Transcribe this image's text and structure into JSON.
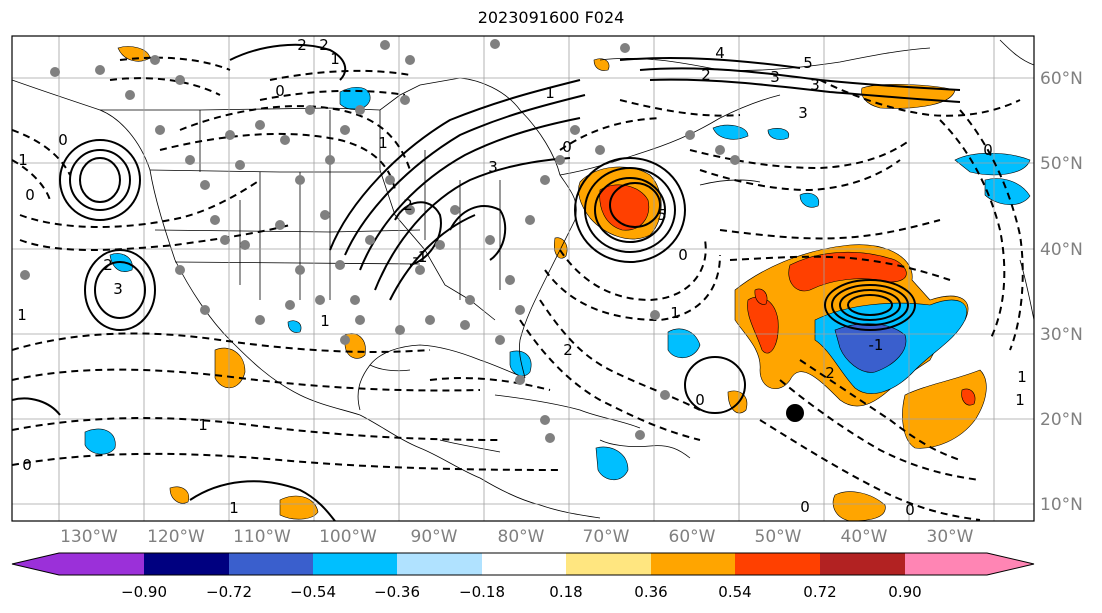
{
  "title": "2023091600 F024",
  "longitude_labels": [
    "130°W",
    "120°W",
    "110°W",
    "100°W",
    "90°W",
    "80°W",
    "70°W",
    "60°W",
    "50°W",
    "40°W",
    "30°W"
  ],
  "latitude_labels": [
    "10°N",
    "20°N",
    "30°N",
    "40°N",
    "50°N",
    "60°N"
  ],
  "colorbar": {
    "ticks": [
      "−0.90",
      "−0.72",
      "−0.54",
      "−0.36",
      "−0.18",
      "0.18",
      "0.36",
      "0.54",
      "0.72",
      "0.90"
    ],
    "colors": [
      "#9b30d9",
      "#000080",
      "#3a5fcd",
      "#00bfff",
      "#b0e2ff",
      "#ffffff",
      "#ffe680",
      "#ffa500",
      "#ff4000",
      "#b22222",
      "#ff85b4"
    ],
    "extend": "both"
  },
  "shading_colors": {
    "light_blue": "#00bfff",
    "blue": "#3a5fcd",
    "orange": "#ffa500",
    "red": "#ff4000"
  },
  "contour_labels": [
    "2",
    "1",
    "2",
    "2",
    "0",
    "4",
    "5",
    "2",
    "3",
    "3",
    "3",
    "0",
    "0",
    "1",
    "0",
    "3",
    "1",
    "3",
    "2",
    "1",
    "0",
    "-1",
    "1",
    "5",
    "1",
    "0",
    "1",
    "2",
    "1",
    "0",
    "2",
    "-1",
    "1",
    "0",
    "0",
    "1",
    "0",
    "1"
  ],
  "storm_marker": "filled-circle",
  "station_dot_color": "#808080"
}
